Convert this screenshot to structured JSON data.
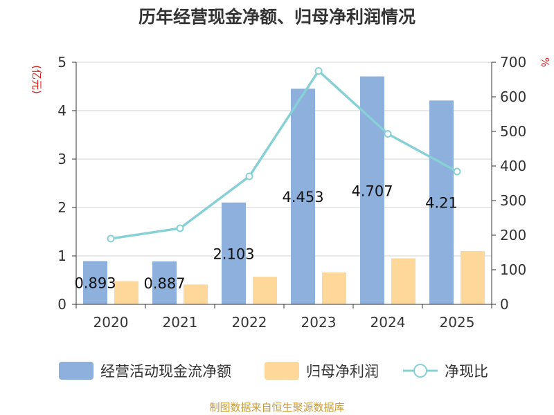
{
  "chart_data": {
    "type": "bar",
    "title": "历年经营现金净额、归母净利润情况",
    "left_unit": "(亿元)",
    "right_unit": "%",
    "categories": [
      "2020",
      "2021",
      "2022",
      "2023",
      "2024",
      "2025"
    ],
    "ylim_left": [
      0,
      5
    ],
    "yticks_left": [
      "0",
      "1",
      "2",
      "3",
      "4",
      "5"
    ],
    "ylim_right": [
      0,
      700
    ],
    "yticks_right": [
      "0",
      "100",
      "200",
      "300",
      "400",
      "500",
      "600",
      "700"
    ],
    "series": [
      {
        "name": "经营活动现金流净额",
        "type": "bar",
        "axis": "left",
        "color": "#8eb0dc",
        "values": [
          0.893,
          0.887,
          2.103,
          4.453,
          4.707,
          4.21
        ],
        "labels": [
          "0.893",
          "0.887",
          "2.103",
          "4.453",
          "4.707",
          "4.21"
        ]
      },
      {
        "name": "归母净利润",
        "type": "bar",
        "axis": "left",
        "color": "#fdd89a",
        "values": [
          0.48,
          0.41,
          0.57,
          0.66,
          0.95,
          1.1
        ]
      },
      {
        "name": "净现比",
        "type": "line",
        "axis": "right",
        "color": "#86d0d6",
        "values": [
          190,
          220,
          370,
          675,
          493,
          384
        ]
      }
    ],
    "grid": true,
    "legend_position": "bottom"
  },
  "source_text": "制图数据来自恒生聚源数据库",
  "colors": {
    "title": "#333333",
    "unit": "#e02020",
    "axis": "#333333",
    "grid": "#d0d0d0",
    "source": "#c89b3c"
  }
}
